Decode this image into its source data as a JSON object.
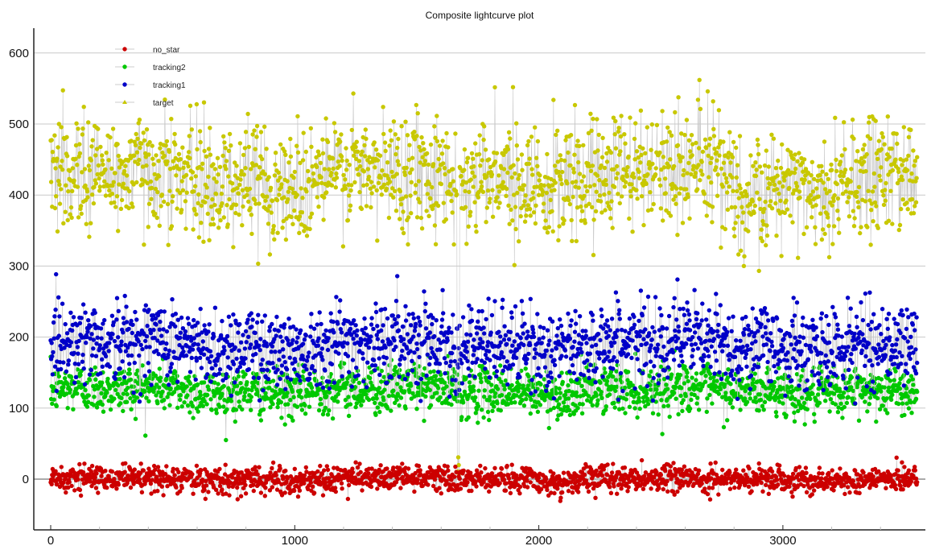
{
  "chart_data": {
    "type": "scatter",
    "title": "Composite lightcurve plot",
    "xlabel": "",
    "ylabel": "",
    "xlim": [
      -69,
      3588
    ],
    "ylim": [
      -70,
      704
    ],
    "x_ticks": [
      0,
      1000,
      2000,
      3000
    ],
    "y_ticks": [
      0,
      100,
      200,
      300,
      400,
      500,
      600
    ],
    "grid": "horizontal",
    "legend_position": "top-left",
    "connect_points": true,
    "line_color": "#c8c8c8",
    "x_range_of_data": [
      0,
      3550
    ],
    "series": [
      {
        "name": "no_star",
        "color": "#cc0000",
        "marker": "circle",
        "mean": 0,
        "std": 9,
        "min": -38,
        "max": 40
      },
      {
        "name": "tracking2",
        "color": "#00c800",
        "marker": "circle",
        "mean": 125,
        "std": 17,
        "min": 55,
        "max": 185
      },
      {
        "name": "tracking1",
        "color": "#0000c8",
        "marker": "circle",
        "mean": 190,
        "std": 28,
        "min": 100,
        "max": 330
      },
      {
        "name": "target",
        "color": "#c8c800",
        "marker": "triangle",
        "mean": 425,
        "std": 40,
        "min": 0,
        "max": 603
      }
    ],
    "annotations": [
      {
        "text": "",
        "x": 1670,
        "note_value": 0
      }
    ]
  }
}
